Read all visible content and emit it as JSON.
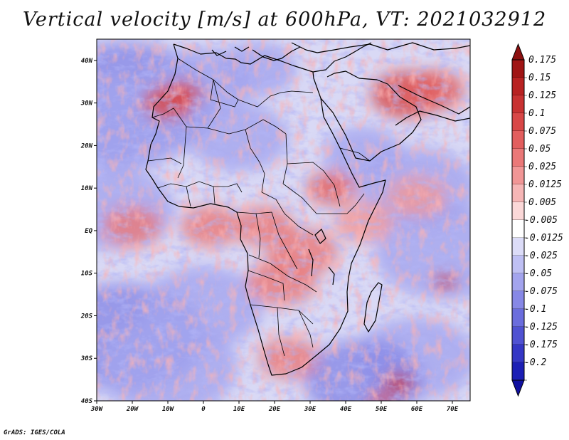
{
  "title": "Vertical velocity [m/s] at 600hPa, VT: 2021032912",
  "footer": "GrADS: IGES/COLA",
  "map": {
    "lon_range": [
      -30,
      75
    ],
    "lat_range": [
      -40,
      45
    ],
    "lon_ticks": [
      {
        "value": -30,
        "label": "30W"
      },
      {
        "value": -20,
        "label": "20W"
      },
      {
        "value": -10,
        "label": "10W"
      },
      {
        "value": 0,
        "label": "0"
      },
      {
        "value": 10,
        "label": "10E"
      },
      {
        "value": 20,
        "label": "20E"
      },
      {
        "value": 30,
        "label": "30E"
      },
      {
        "value": 40,
        "label": "40E"
      },
      {
        "value": 50,
        "label": "50E"
      },
      {
        "value": 60,
        "label": "60E"
      },
      {
        "value": 70,
        "label": "70E"
      }
    ],
    "lat_ticks": [
      {
        "value": 40,
        "label": "40N"
      },
      {
        "value": 30,
        "label": "30N"
      },
      {
        "value": 20,
        "label": "20N"
      },
      {
        "value": 10,
        "label": "10N"
      },
      {
        "value": 0,
        "label": "EQ"
      },
      {
        "value": -10,
        "label": "10S"
      },
      {
        "value": -20,
        "label": "20S"
      },
      {
        "value": -30,
        "label": "30S"
      },
      {
        "value": -40,
        "label": "40S"
      }
    ],
    "field_patches": [
      {
        "lon": -22,
        "lat": 30,
        "w": 0.9,
        "v": -0.08
      },
      {
        "lon": -24,
        "lat": 25,
        "w": 0.7,
        "v": -0.06
      },
      {
        "lon": -25,
        "lat": 5,
        "w": 0.6,
        "v": -0.05
      },
      {
        "lon": -22,
        "lat": -25,
        "w": 0.8,
        "v": -0.07
      },
      {
        "lon": -10,
        "lat": -32,
        "w": 0.7,
        "v": -0.06
      },
      {
        "lon": 0,
        "lat": 35,
        "w": 0.5,
        "v": -0.05
      },
      {
        "lon": 15,
        "lat": 38,
        "w": 0.4,
        "v": -0.05
      },
      {
        "lon": 10,
        "lat": 22,
        "w": 0.5,
        "v": -0.04
      },
      {
        "lon": 45,
        "lat": 18,
        "w": 0.4,
        "v": -0.05
      },
      {
        "lon": 60,
        "lat": 10,
        "w": 0.6,
        "v": -0.06
      },
      {
        "lon": 68,
        "lat": -5,
        "w": 0.7,
        "v": -0.06
      },
      {
        "lon": 60,
        "lat": -30,
        "w": 0.6,
        "v": -0.05
      },
      {
        "lon": 45,
        "lat": -35,
        "w": 0.6,
        "v": -0.07
      },
      {
        "lon": 0,
        "lat": -18,
        "w": 0.6,
        "v": -0.05
      },
      {
        "lon": -10,
        "lat": 30,
        "w": 0.25,
        "v": 0.09
      },
      {
        "lon": -6,
        "lat": 32,
        "w": 0.2,
        "v": 0.1
      },
      {
        "lon": 57,
        "lat": 32,
        "w": 0.35,
        "v": 0.09
      },
      {
        "lon": 65,
        "lat": 33,
        "w": 0.3,
        "v": 0.08
      },
      {
        "lon": 36,
        "lat": 10,
        "w": 0.25,
        "v": 0.07
      },
      {
        "lon": 28,
        "lat": -5,
        "w": 0.35,
        "v": 0.06
      },
      {
        "lon": 22,
        "lat": -12,
        "w": 0.35,
        "v": 0.06
      },
      {
        "lon": 17,
        "lat": 1,
        "w": 0.3,
        "v": 0.05
      },
      {
        "lon": 2,
        "lat": 1,
        "w": 0.3,
        "v": 0.04
      },
      {
        "lon": -20,
        "lat": 1,
        "w": 0.3,
        "v": 0.04
      },
      {
        "lon": 24,
        "lat": -30,
        "w": 0.3,
        "v": 0.06
      },
      {
        "lon": 68,
        "lat": -12,
        "w": 0.12,
        "v": 0.12
      },
      {
        "lon": 55,
        "lat": -36,
        "w": 0.15,
        "v": 0.12
      },
      {
        "lon": 50,
        "lat": -40,
        "w": 0.12,
        "v": 0.1
      },
      {
        "lon": 60,
        "lat": 8,
        "w": 0.3,
        "v": 0.03
      },
      {
        "lon": 45,
        "lat": 2,
        "w": 0.3,
        "v": 0.03
      }
    ]
  },
  "colorbar": {
    "levels": [
      {
        "label": "0.175",
        "color": "#a01515"
      },
      {
        "label": "0.15",
        "color": "#b82222"
      },
      {
        "label": "0.125",
        "color": "#c83232"
      },
      {
        "label": "0.1",
        "color": "#d84747"
      },
      {
        "label": "0.075",
        "color": "#e25e5e"
      },
      {
        "label": "0.05",
        "color": "#ea7878"
      },
      {
        "label": "0.025",
        "color": "#f19696"
      },
      {
        "label": "0.0125",
        "color": "#f6b6b6"
      },
      {
        "label": "0.005",
        "color": "#fbd8d8"
      },
      {
        "label": "-0.005",
        "color": "#ffffff"
      },
      {
        "label": "-0.0125",
        "color": "#dcdcf8"
      },
      {
        "label": "-0.025",
        "color": "#bfc0f4"
      },
      {
        "label": "-0.05",
        "color": "#a3a4ee"
      },
      {
        "label": "-0.075",
        "color": "#8788e6"
      },
      {
        "label": "-0.1",
        "color": "#6b6ddd"
      },
      {
        "label": "-0.125",
        "color": "#5052d2"
      },
      {
        "label": "-0.175",
        "color": "#3537c5"
      },
      {
        "label": "-0.2",
        "color": "#1c1fb5"
      }
    ],
    "top_color": "#8c1010",
    "bottom_color": "#1010a0",
    "mid_color": "#fbd8d8"
  }
}
